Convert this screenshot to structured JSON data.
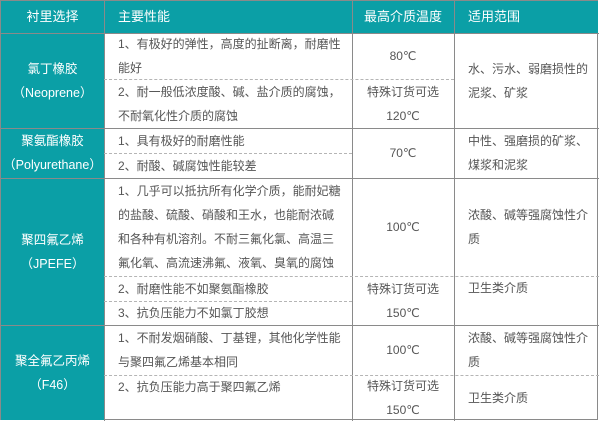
{
  "header": [
    "衬里选择",
    "主要性能",
    "最高介质温度",
    "适用范围"
  ],
  "accent_color": "#0b9fa6",
  "groups": [
    {
      "name": [
        "氯丁橡胶",
        "（Neoprene）"
      ],
      "properties": [
        [
          "1、有极好的弹性，高度的扯断离，耐磨性",
          "能好"
        ],
        [
          "2、耐一般低浓度酸、碱、盐介质的腐蚀，",
          "不耐氧化性介质的腐蚀"
        ]
      ],
      "temperatures": [
        [
          "80℃"
        ],
        [
          "特殊订货可选",
          "120℃"
        ]
      ],
      "scope": [
        [
          "水、污水、弱磨损性的",
          "泥浆、矿浆"
        ]
      ]
    },
    {
      "name": [
        "聚氨酯橡胶",
        "（Polyurethane）"
      ],
      "properties": [
        [
          "1、具有极好的耐磨性能"
        ],
        [
          "2、耐酸、碱腐蚀性能较差"
        ]
      ],
      "temperatures": [
        [
          "70℃"
        ]
      ],
      "scope": [
        [
          "中性、强磨损的矿浆、",
          "煤浆和泥浆"
        ]
      ]
    },
    {
      "name": [
        "聚四氟乙烯",
        "（JPEFE）"
      ],
      "properties": [
        [
          "1、几乎可以抵抗所有化学介质，能耐妃糖",
          "的盐酸、硫酸、硝酸和王水，也能耐浓碱",
          "和各种有机溶剂。不耐三氟化氯、高温三",
          "氟化氧、高流速沸氟、液氧、臭氧的腐蚀"
        ],
        [
          "2、耐磨性能不如聚氨酯橡胶"
        ],
        [
          "3、抗负压能力不如氯丁胶想"
        ]
      ],
      "temperatures": [
        [
          "100℃"
        ],
        [
          "特殊订货可选",
          "150℃"
        ]
      ],
      "scope": [
        [
          "浓酸、碱等强腐蚀性介",
          "质"
        ],
        [
          "卫生类介质"
        ]
      ]
    },
    {
      "name": [
        "聚全氟乙丙烯",
        "（F46）"
      ],
      "properties": [
        [
          "1、不耐发烟硝酸、丁基锂，其他化学性能",
          "与聚四氟乙烯基本相同"
        ],
        [
          "2、抗负压能力高于聚四氟乙烯"
        ]
      ],
      "temperatures": [
        [
          "100℃"
        ],
        [
          "特殊订货可选",
          "150℃"
        ]
      ],
      "scope": [
        [
          "浓酸、碱等强腐蚀性介",
          "质"
        ],
        [
          "卫生类介质"
        ]
      ]
    }
  ]
}
